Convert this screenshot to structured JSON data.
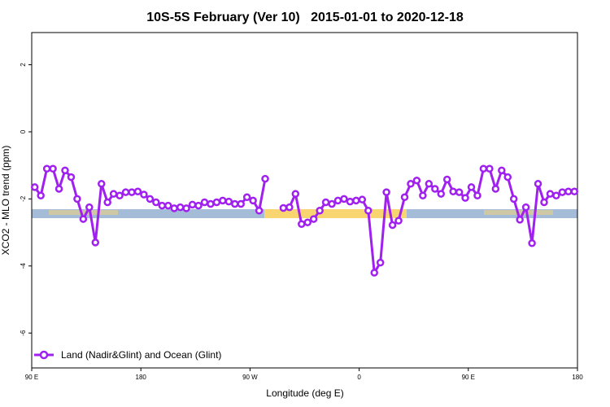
{
  "chart_data": {
    "type": "line",
    "title": "10S-5S February (Ver 10)   2015-01-01 to 2020-12-18",
    "x_label": "Longitude (deg E)",
    "y_label": "XCO2 - MLO trend (ppm)",
    "xlim": [
      90,
      540
    ],
    "ylim": [
      -7.04,
      2.96
    ],
    "xticks": [
      {
        "value": 90,
        "label": "90 E"
      },
      180,
      {
        "value": 270,
        "label": "90 W"
      },
      {
        "value": 360,
        "label": "0"
      },
      {
        "value": 450,
        "label": "90 E"
      },
      {
        "value": 540,
        "label": "180"
      }
    ],
    "yticks": [
      -6,
      -4,
      -2,
      0,
      2
    ],
    "legend": "bottom-left",
    "x": [
      92.5,
      97.5,
      102.5,
      107.5,
      112.5,
      117.5,
      122.5,
      127.5,
      132.5,
      137.5,
      142.5,
      147.5,
      152.5,
      157.5,
      162.5,
      167.5,
      172.5,
      177.5,
      182.5,
      187.5,
      192.5,
      197.5,
      202.5,
      207.5,
      212.5,
      217.5,
      222.5,
      227.5,
      232.5,
      237.5,
      242.5,
      247.5,
      252.5,
      257.5,
      262.5,
      267.5,
      272.5,
      277.5,
      282.5,
      287.5,
      292.5,
      297.5,
      302.5,
      307.5,
      312.5,
      317.5,
      322.5,
      327.5,
      332.5,
      337.5,
      342.5,
      347.5,
      352.5,
      357.5,
      362.5,
      367.5,
      372.5,
      377.5,
      382.5,
      387.5,
      392.5,
      397.5,
      402.5,
      407.5,
      412.5,
      417.5,
      422.5,
      427.5,
      432.5,
      437.5,
      442.5,
      447.5,
      452.5,
      457.5,
      462.5,
      467.5,
      472.5,
      477.5,
      482.5,
      487.5,
      492.5,
      497.5,
      502.5,
      507.5,
      512.5,
      517.5,
      522.5,
      527.5,
      532.5,
      537.5
    ],
    "series": [
      {
        "name": "Land (Nadir&Glint) and Ocean (Glint)",
        "color": "#a020f0",
        "values": [
          -1.65,
          -1.9,
          -1.1,
          -1.1,
          -1.7,
          -1.15,
          -1.35,
          -2.0,
          -2.6,
          -2.25,
          -3.3,
          -1.55,
          -2.1,
          -1.85,
          -1.9,
          -1.8,
          -1.8,
          -1.78,
          -1.87,
          -2.0,
          -2.1,
          -2.2,
          -2.2,
          -2.28,
          -2.25,
          -2.28,
          -2.17,
          -2.2,
          -2.1,
          -2.15,
          -2.1,
          -2.05,
          -2.08,
          -2.15,
          -2.15,
          -1.95,
          -2.05,
          -2.35,
          -1.4,
          null,
          null,
          -2.27,
          -2.25,
          -1.85,
          -2.75,
          -2.7,
          -2.6,
          -2.35,
          -2.1,
          -2.15,
          -2.05,
          -2.0,
          -2.08,
          -2.05,
          -2.02,
          -2.35,
          -4.2,
          -3.9,
          -1.8,
          -2.78,
          -2.65,
          -1.95,
          -1.55,
          -1.45,
          -1.9,
          -1.55,
          -1.7,
          -1.85,
          -1.42,
          -1.78,
          -1.8,
          -1.97,
          -1.65,
          -1.9,
          -1.1,
          -1.1,
          -1.7,
          -1.15,
          -1.35,
          -2.0,
          -2.62,
          -2.25,
          -3.32,
          -1.55,
          -2.1,
          -1.85,
          -1.9,
          -1.8,
          -1.78,
          -1.78
        ]
      }
    ]
  }
}
